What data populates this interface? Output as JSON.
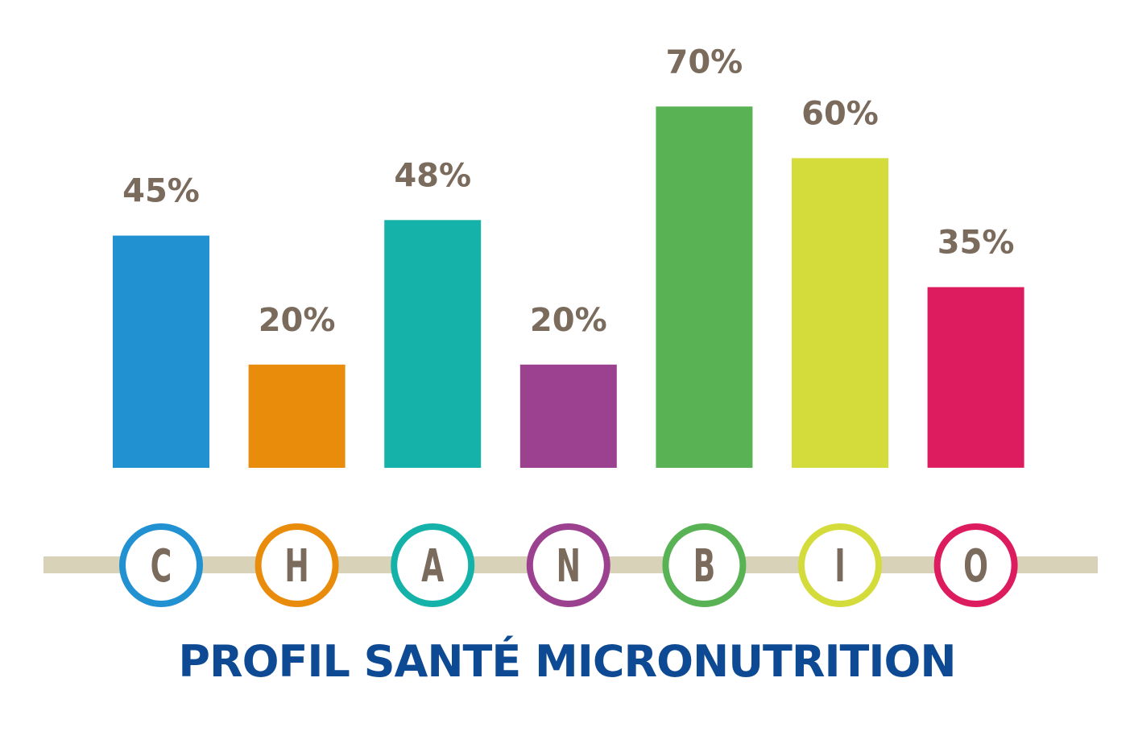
{
  "title": "PROFIL SANTÉ MICRONUTRITION",
  "colors": {
    "track": "#d8d3b8",
    "label_text": "#7a6b5d",
    "title_text": "#0e4a93"
  },
  "chart_data": {
    "type": "bar",
    "categories": [
      "C",
      "H",
      "A",
      "N",
      "B",
      "I",
      "O"
    ],
    "values": [
      45,
      20,
      48,
      20,
      70,
      60,
      35
    ],
    "value_labels": [
      "45%",
      "20%",
      "48%",
      "20%",
      "70%",
      "60%",
      "35%"
    ],
    "colors": [
      "#2291d2",
      "#e98c0c",
      "#15b2a9",
      "#9c418f",
      "#59b354",
      "#d4dc3b",
      "#dd1b5f"
    ],
    "title": "PROFIL SANTÉ MICRONUTRITION",
    "xlabel": "",
    "ylabel": "",
    "ylim": [
      0,
      100
    ],
    "grid": false,
    "legend": "none"
  }
}
